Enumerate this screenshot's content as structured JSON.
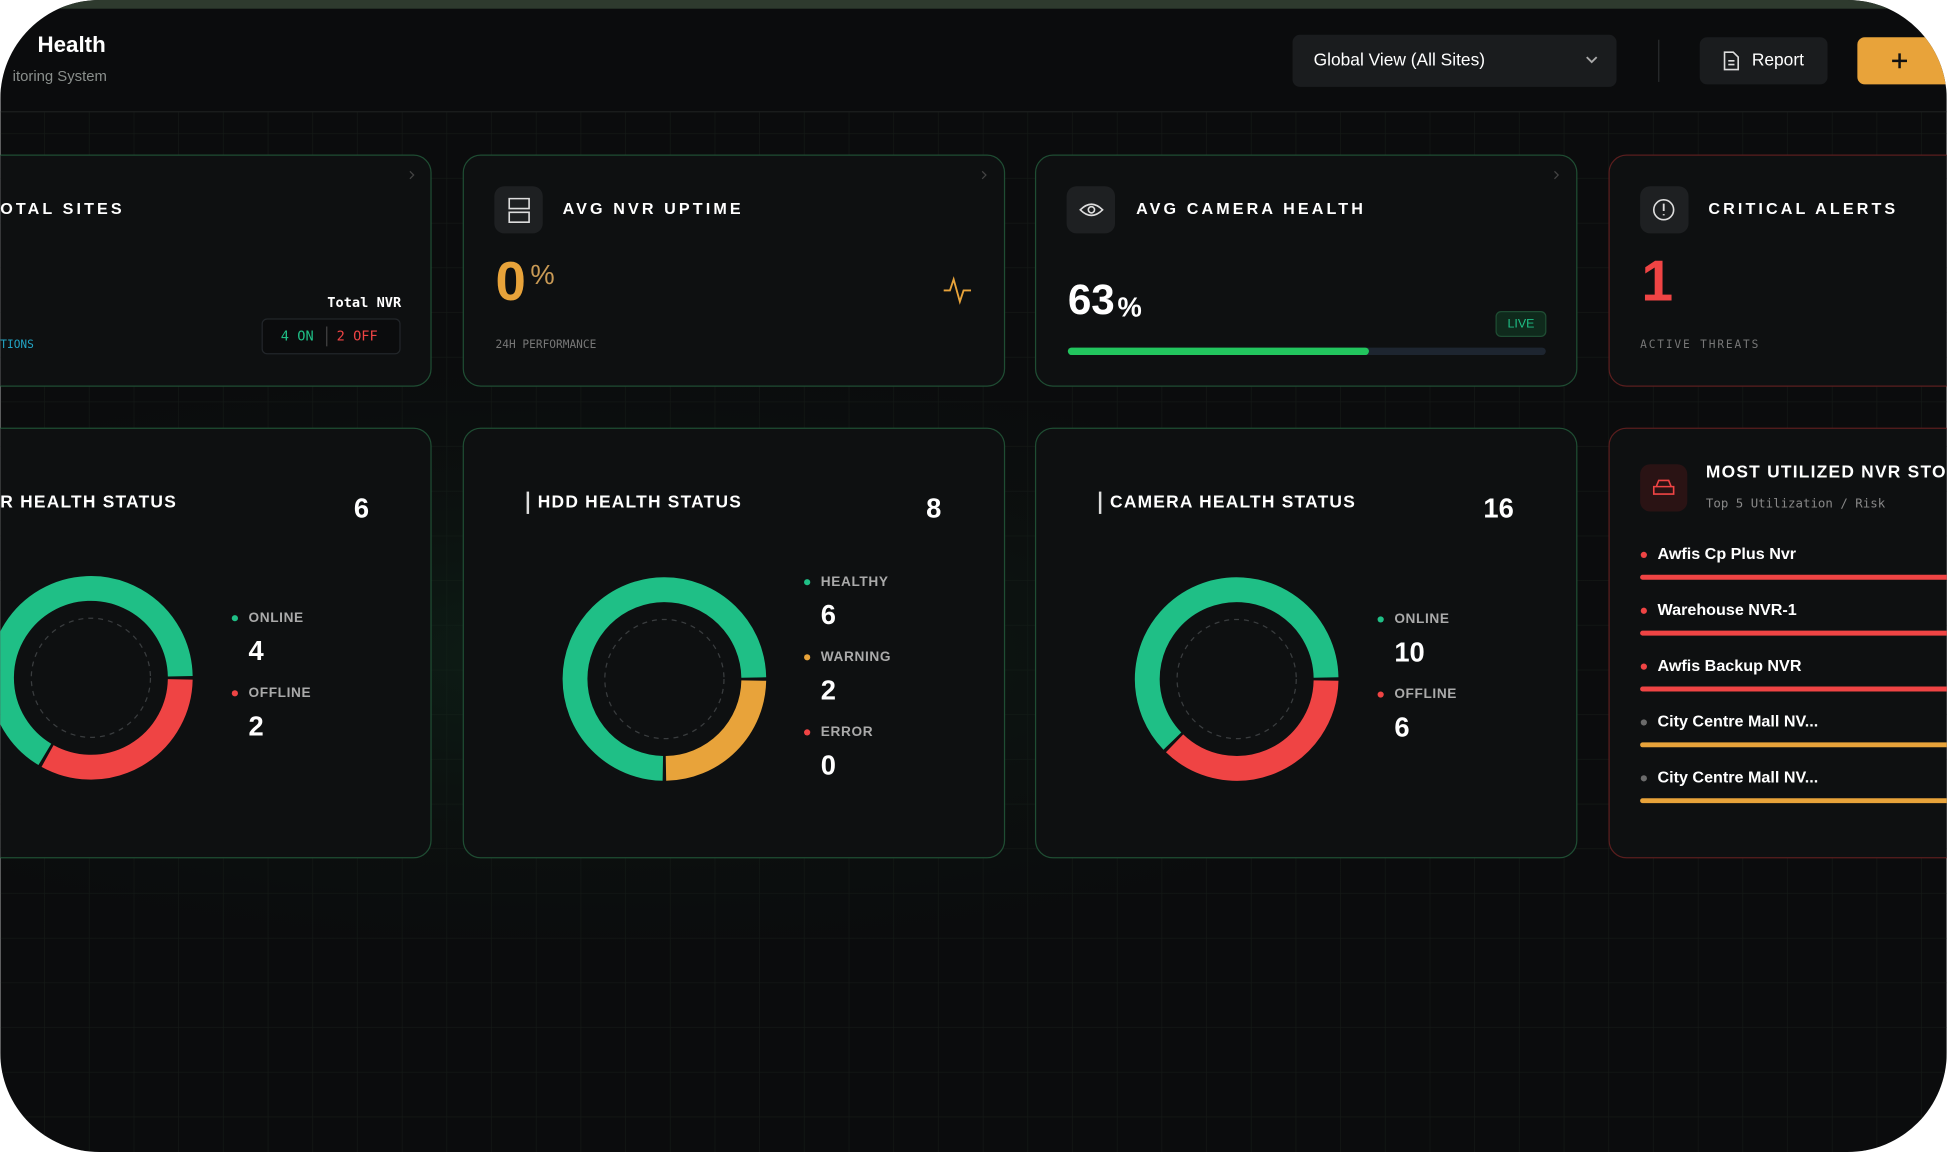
{
  "header": {
    "title": "Health",
    "subtitle": "itoring System",
    "site_select": "Global View (All Sites)",
    "report_button": "Report"
  },
  "stats": {
    "sites": {
      "title": "OTAL SITES",
      "total_label": "Total NVR",
      "on": "4 ON",
      "off": "2 OFF",
      "footer": "TIONS"
    },
    "uptime": {
      "title": "AVG NVR UPTIME",
      "value": 0,
      "unit": "%",
      "footer": "24H PERFORMANCE"
    },
    "camera": {
      "title": "AVG CAMERA HEALTH",
      "value": 63,
      "unit": "%",
      "badge": "LIVE"
    },
    "alerts": {
      "title": "CRITICAL ALERTS",
      "value": 1,
      "footer": "ACTIVE THREATS"
    }
  },
  "status_cards": [
    {
      "title": "R HEALTH STATUS",
      "total": 6,
      "segments": [
        {
          "label": "ONLINE",
          "value": 4,
          "color": "#1fbf86"
        },
        {
          "label": "OFFLINE",
          "value": 2,
          "color": "#ef4444"
        }
      ]
    },
    {
      "title": "HDD HEALTH STATUS",
      "total": 8,
      "segments": [
        {
          "label": "HEALTHY",
          "value": 6,
          "color": "#1fbf86"
        },
        {
          "label": "WARNING",
          "value": 2,
          "color": "#e8a33a"
        },
        {
          "label": "ERROR",
          "value": 0,
          "color": "#ef4444"
        }
      ]
    },
    {
      "title": "CAMERA HEALTH STATUS",
      "total": 16,
      "segments": [
        {
          "label": "ONLINE",
          "value": 10,
          "color": "#1fbf86"
        },
        {
          "label": "OFFLINE",
          "value": 6,
          "color": "#ef4444"
        }
      ]
    }
  ],
  "utilization": {
    "title": "MOST UTILIZED NVR STO",
    "subtitle": "Top 5 Utilization / Risk",
    "items": [
      {
        "name": "Awfis Cp Plus Nvr",
        "dot": "#ef4444",
        "color": "#ef4444"
      },
      {
        "name": "Warehouse NVR-1",
        "dot": "#ef4444",
        "color": "#ef4444"
      },
      {
        "name": "Awfis Backup NVR",
        "dot": "#ef4444",
        "color": "#ef4444"
      },
      {
        "name": "City Centre Mall NV...",
        "dot": "#6b6b6b",
        "color": "#e8a33a"
      },
      {
        "name": "City Centre Mall NV...",
        "dot": "#6b6b6b",
        "color": "#e8a33a"
      }
    ]
  }
}
